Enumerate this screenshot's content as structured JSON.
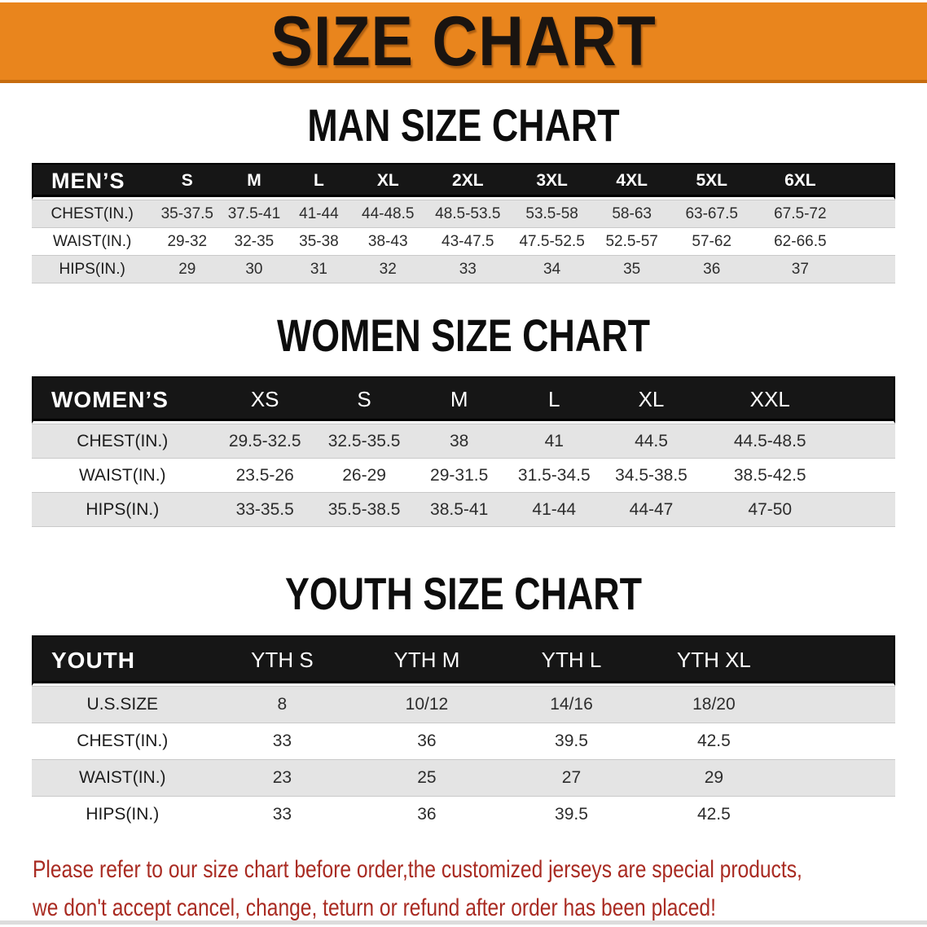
{
  "banner": {
    "title": "SIZE CHART"
  },
  "sections": [
    {
      "id": "men",
      "heading": "MAN SIZE CHART",
      "table": {
        "label_header": "MEN’S",
        "size_headers": [
          "S",
          "M",
          "L",
          "XL",
          "2XL",
          "3XL",
          "4XL",
          "5XL",
          "6XL"
        ],
        "rows": [
          {
            "label": "CHEST(IN.)",
            "values": [
              "35-37.5",
              "37.5-41",
              "41-44",
              "44-48.5",
              "48.5-53.5",
              "53.5-58",
              "58-63",
              "63-67.5",
              "67.5-72"
            ]
          },
          {
            "label": "WAIST(IN.)",
            "values": [
              "29-32",
              "32-35",
              "35-38",
              "38-43",
              "43-47.5",
              "47.5-52.5",
              "52.5-57",
              "57-62",
              "62-66.5"
            ]
          },
          {
            "label": "HIPS(IN.)",
            "values": [
              "29",
              "30",
              "31",
              "32",
              "33",
              "34",
              "35",
              "36",
              "37"
            ]
          }
        ]
      }
    },
    {
      "id": "women",
      "heading": "WOMEN SIZE CHART",
      "table": {
        "label_header": "WOMEN’S",
        "size_headers": [
          "XS",
          "S",
          "M",
          "L",
          "XL",
          "XXL"
        ],
        "rows": [
          {
            "label": "CHEST(IN.)",
            "values": [
              "29.5-32.5",
              "32.5-35.5",
              "38",
              "41",
              "44.5",
              "44.5-48.5"
            ]
          },
          {
            "label": "WAIST(IN.)",
            "values": [
              "23.5-26",
              "26-29",
              "29-31.5",
              "31.5-34.5",
              "34.5-38.5",
              "38.5-42.5"
            ]
          },
          {
            "label": "HIPS(IN.)",
            "values": [
              "33-35.5",
              "35.5-38.5",
              "38.5-41",
              "41-44",
              "44-47",
              "47-50"
            ]
          }
        ]
      }
    },
    {
      "id": "youth",
      "heading": "YOUTH SIZE CHART",
      "table": {
        "label_header": "YOUTH",
        "size_headers": [
          "YTH S",
          "YTH M",
          "YTH L",
          "YTH XL"
        ],
        "rows": [
          {
            "label": "U.S.SIZE",
            "values": [
              "8",
              "10/12",
              "14/16",
              "18/20"
            ]
          },
          {
            "label": "CHEST(IN.)",
            "values": [
              "33",
              "36",
              "39.5",
              "42.5"
            ]
          },
          {
            "label": "WAIST(IN.)",
            "values": [
              "23",
              "25",
              "27",
              "29"
            ]
          },
          {
            "label": "HIPS(IN.)",
            "values": [
              "33",
              "36",
              "39.5",
              "42.5"
            ]
          }
        ]
      }
    }
  ],
  "disclaimer": {
    "line1": "Please refer to our size chart before order,the customized jerseys are special products,",
    "line2": "we don't accept cancel, change, teturn or refund after order has been placed!"
  },
  "colors": {
    "banner_bg": "#E9851D",
    "banner_edge": "#C66C0F",
    "banner_text": "#1A1410",
    "header_bar_bg": "#161616",
    "header_bar_text": "#FFFFFF",
    "stripe_bg": "#E4E4E4",
    "disclaimer_red": "#A92B22"
  }
}
